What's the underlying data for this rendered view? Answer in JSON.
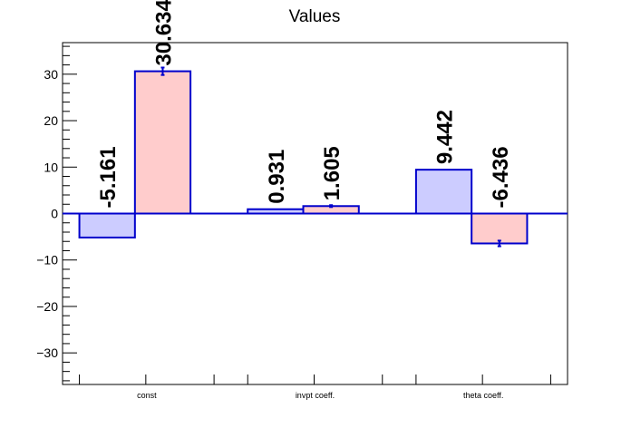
{
  "chart_data": {
    "type": "bar",
    "title": "Values",
    "xlabel": "",
    "ylabel": "",
    "categories": [
      "const",
      "invpt coeff.",
      "theta coeff."
    ],
    "series": [
      {
        "values": [
          -5.161,
          0.931,
          9.442
        ],
        "errors": [
          0,
          0,
          0
        ],
        "fill": "#ccccff",
        "stroke": "#0000cc"
      },
      {
        "values": [
          30.634,
          1.605,
          -6.436
        ],
        "errors": [
          0.8,
          0.2,
          0.6
        ],
        "fill": "#ffcccc",
        "stroke": "#0000cc"
      }
    ],
    "data_labels": [
      [
        "-5.161",
        "0.931",
        "9.442"
      ],
      [
        "30.634",
        "1.605",
        "-6.436"
      ]
    ],
    "yticks": [
      -30,
      -20,
      -10,
      0,
      10,
      20,
      30
    ],
    "ytick_labels": [
      "−30",
      "−20",
      "−10",
      "0",
      "10",
      "20",
      "30"
    ],
    "ylim": [
      -36.8,
      36.8
    ],
    "grid": false,
    "legend": "none"
  }
}
